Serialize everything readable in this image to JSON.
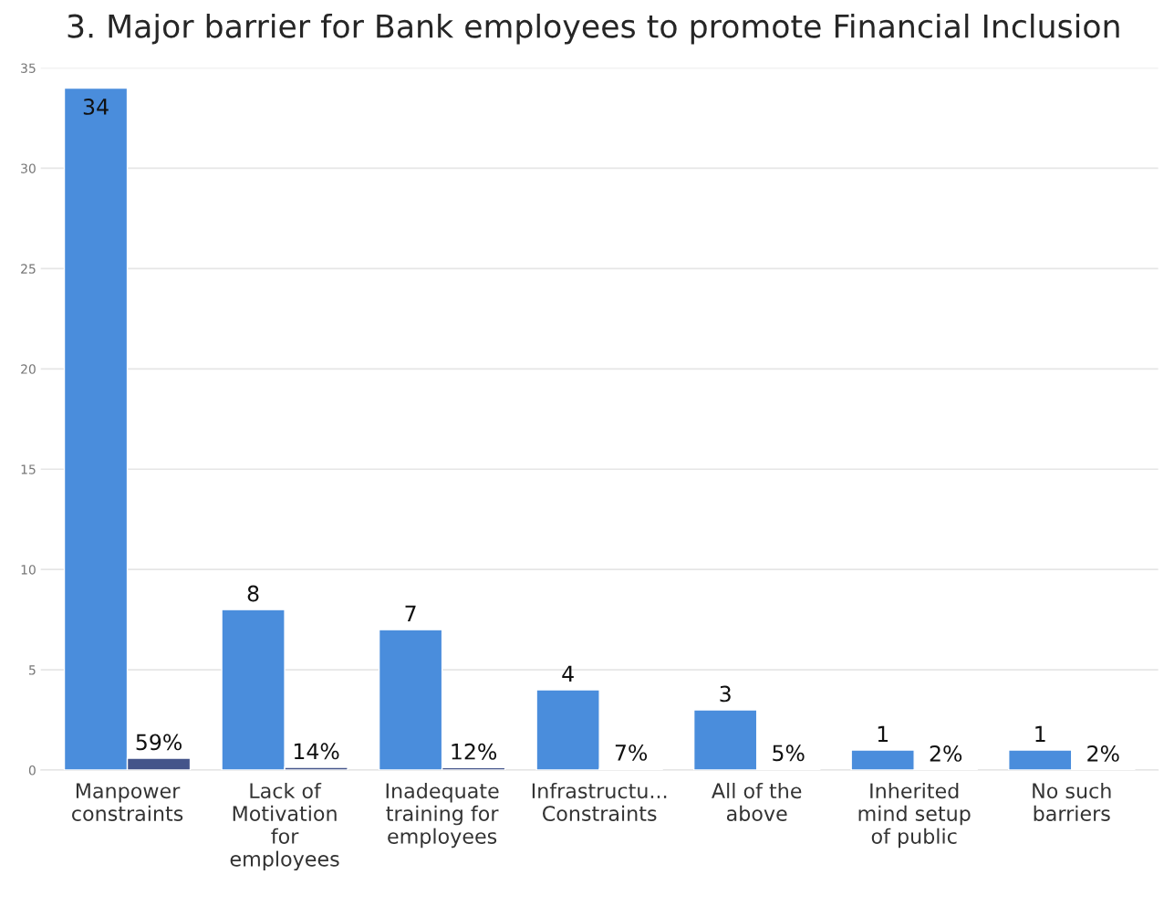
{
  "chart_data": {
    "type": "bar",
    "title": "3. Major barrier for Bank employees to promote Financial Inclusion",
    "categories": [
      "Manpower\nconstraints",
      "Lack of\nMotivation\nfor\nemployees",
      "Inadequate\ntraining for\nemployees",
      "Infrastructu...\nConstraints",
      "All of the\nabove",
      "Inherited\nmind setup\nof public",
      "No such\nbarriers"
    ],
    "series": [
      {
        "color": "#4a8ddc",
        "values": [
          34,
          8,
          7,
          4,
          3,
          1,
          1
        ],
        "value_labels": [
          "34",
          "8",
          "7",
          "4",
          "3",
          "1",
          "1"
        ]
      },
      {
        "color": "#44548a",
        "values": [
          0.59,
          0.14,
          0.12,
          0.07,
          0.05,
          0.02,
          0.02
        ],
        "value_labels": [
          "59%",
          "14%",
          "12%",
          "7%",
          "5%",
          "2%",
          "2%"
        ]
      }
    ],
    "ylim": [
      0,
      35
    ],
    "yticks": [
      0,
      5,
      10,
      15,
      20,
      25,
      30,
      35
    ],
    "grid": "y",
    "legend": false
  }
}
